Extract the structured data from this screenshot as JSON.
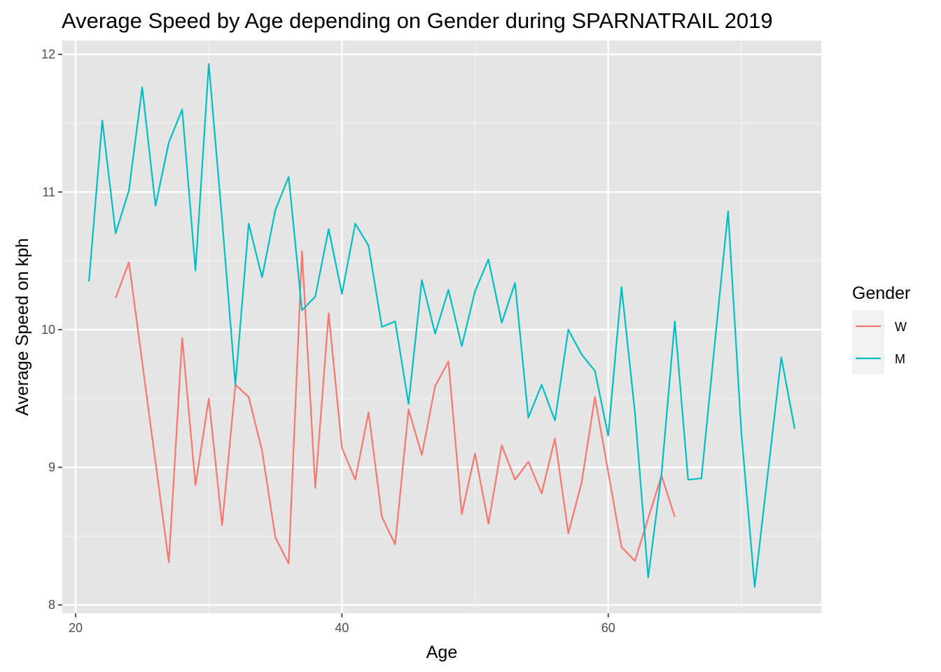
{
  "chart_data": {
    "type": "line",
    "title": "Average Speed by Age depending on Gender during SPARNATRAIL 2019",
    "xlabel": "Age",
    "ylabel": "Average Speed on kph",
    "xlim": [
      19,
      76
    ],
    "ylim": [
      7.94,
      12.1
    ],
    "x_ticks": [
      20,
      40,
      60
    ],
    "x_minor_ticks": [
      30,
      50,
      70
    ],
    "y_ticks": [
      8,
      9,
      10,
      11,
      12
    ],
    "y_minor_ticks": [
      8.5,
      9.5,
      10.5,
      11.5
    ],
    "grid": true,
    "legend": {
      "title": "Gender",
      "position": "right"
    },
    "series": [
      {
        "name": "W",
        "color": "#F8766D",
        "points": [
          [
            23,
            10.23
          ],
          [
            24,
            10.49
          ],
          [
            27,
            8.31
          ],
          [
            28,
            9.94
          ],
          [
            29,
            8.87
          ],
          [
            30,
            9.5
          ],
          [
            31,
            8.58
          ],
          [
            32,
            9.6
          ],
          [
            33,
            9.51
          ],
          [
            34,
            9.12
          ],
          [
            35,
            8.49
          ],
          [
            36,
            8.3
          ],
          [
            37,
            10.57
          ],
          [
            38,
            8.85
          ],
          [
            39,
            10.12
          ],
          [
            40,
            9.14
          ],
          [
            41,
            8.91
          ],
          [
            42,
            9.4
          ],
          [
            43,
            8.64
          ],
          [
            44,
            8.44
          ],
          [
            45,
            9.42
          ],
          [
            46,
            9.09
          ],
          [
            47,
            9.59
          ],
          [
            48,
            9.77
          ],
          [
            49,
            8.66
          ],
          [
            50,
            9.1
          ],
          [
            51,
            8.59
          ],
          [
            52,
            9.16
          ],
          [
            53,
            8.91
          ],
          [
            54,
            9.04
          ],
          [
            55,
            8.81
          ],
          [
            56,
            9.21
          ],
          [
            57,
            8.52
          ],
          [
            58,
            8.89
          ],
          [
            59,
            9.51
          ],
          [
            61,
            8.42
          ],
          [
            62,
            8.32
          ],
          [
            64,
            8.94
          ],
          [
            65,
            8.64
          ]
        ]
      },
      {
        "name": "M",
        "color": "#00BFC4",
        "points": [
          [
            21,
            10.35
          ],
          [
            22,
            11.52
          ],
          [
            23,
            10.7
          ],
          [
            24,
            11.01
          ],
          [
            25,
            11.76
          ],
          [
            26,
            10.9
          ],
          [
            27,
            11.36
          ],
          [
            28,
            11.6
          ],
          [
            29,
            10.43
          ],
          [
            30,
            11.93
          ],
          [
            31,
            10.8
          ],
          [
            32,
            9.6
          ],
          [
            33,
            10.77
          ],
          [
            34,
            10.38
          ],
          [
            35,
            10.87
          ],
          [
            36,
            11.11
          ],
          [
            37,
            10.14
          ],
          [
            38,
            10.24
          ],
          [
            39,
            10.73
          ],
          [
            40,
            10.26
          ],
          [
            41,
            10.77
          ],
          [
            42,
            10.61
          ],
          [
            43,
            10.02
          ],
          [
            44,
            10.06
          ],
          [
            45,
            9.46
          ],
          [
            46,
            10.36
          ],
          [
            47,
            9.97
          ],
          [
            48,
            10.29
          ],
          [
            49,
            9.88
          ],
          [
            50,
            10.28
          ],
          [
            51,
            10.51
          ],
          [
            52,
            10.05
          ],
          [
            53,
            10.34
          ],
          [
            54,
            9.36
          ],
          [
            55,
            9.6
          ],
          [
            56,
            9.34
          ],
          [
            57,
            10.0
          ],
          [
            58,
            9.82
          ],
          [
            59,
            9.7
          ],
          [
            60,
            9.23
          ],
          [
            61,
            10.31
          ],
          [
            62,
            9.4
          ],
          [
            63,
            8.2
          ],
          [
            64,
            8.95
          ],
          [
            65,
            10.06
          ],
          [
            66,
            8.91
          ],
          [
            67,
            8.92
          ],
          [
            68,
            9.9
          ],
          [
            69,
            10.86
          ],
          [
            70,
            9.25
          ],
          [
            71,
            8.13
          ],
          [
            73,
            9.8
          ],
          [
            74,
            9.28
          ]
        ]
      }
    ]
  }
}
